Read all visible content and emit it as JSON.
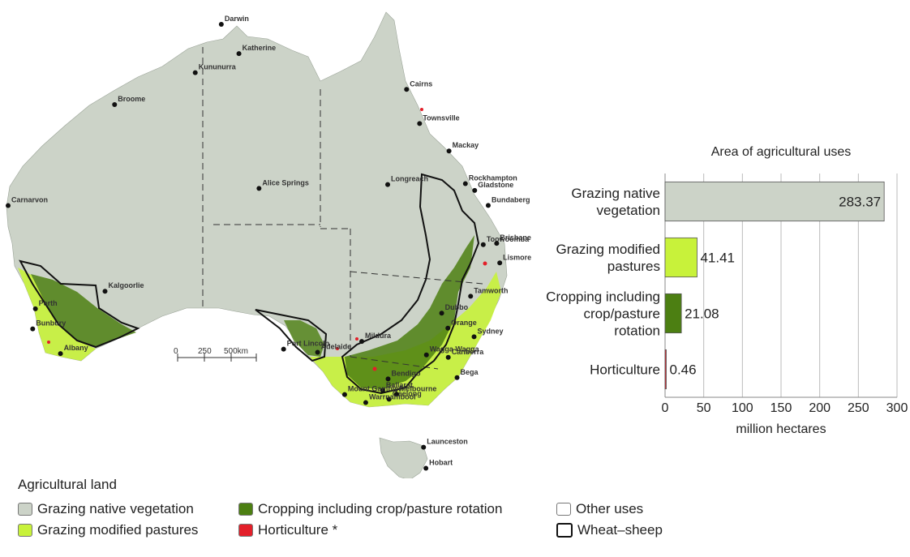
{
  "map": {
    "cities": [
      {
        "name": "Darwin",
        "lon": 130.84,
        "lat": -12.46
      },
      {
        "name": "Katherine",
        "lon": 132.26,
        "lat": -14.47
      },
      {
        "name": "Kununurra",
        "lon": 128.74,
        "lat": -15.77
      },
      {
        "name": "Broome",
        "lon": 122.24,
        "lat": -17.96
      },
      {
        "name": "Cairns",
        "lon": 145.77,
        "lat": -16.92
      },
      {
        "name": "Townsville",
        "lon": 146.82,
        "lat": -19.26
      },
      {
        "name": "Mackay",
        "lon": 149.19,
        "lat": -21.14
      },
      {
        "name": "Alice Springs",
        "lon": 133.88,
        "lat": -23.7
      },
      {
        "name": "Longreach",
        "lon": 144.25,
        "lat": -23.44
      },
      {
        "name": "Gladstone",
        "lon": 151.26,
        "lat": -23.84
      },
      {
        "name": "Rockhampton",
        "lon": 150.51,
        "lat": -23.38
      },
      {
        "name": "Bundaberg",
        "lon": 152.35,
        "lat": -24.87
      },
      {
        "name": "Carnarvon",
        "lon": 113.66,
        "lat": -24.88
      },
      {
        "name": "Toowoomba",
        "lon": 151.95,
        "lat": -27.56
      },
      {
        "name": "Brisbane",
        "lon": 153.03,
        "lat": -27.47
      },
      {
        "name": "Lismore",
        "lon": 153.28,
        "lat": -28.81
      },
      {
        "name": "Kalgoorlie",
        "lon": 121.47,
        "lat": -30.75
      },
      {
        "name": "Tamworth",
        "lon": 150.93,
        "lat": -31.09
      },
      {
        "name": "Perth",
        "lon": 115.86,
        "lat": -31.95
      },
      {
        "name": "Dubbo",
        "lon": 148.6,
        "lat": -32.25
      },
      {
        "name": "Bunbury",
        "lon": 115.64,
        "lat": -33.33
      },
      {
        "name": "Orange",
        "lon": 149.1,
        "lat": -33.28
      },
      {
        "name": "Port Lincoln",
        "lon": 135.86,
        "lat": -34.72
      },
      {
        "name": "Mildura",
        "lon": 142.16,
        "lat": -34.19
      },
      {
        "name": "Sydney",
        "lon": 151.21,
        "lat": -33.87
      },
      {
        "name": "Adelaide",
        "lon": 138.6,
        "lat": -34.93
      },
      {
        "name": "Albany",
        "lon": 117.88,
        "lat": -35.02
      },
      {
        "name": "Wagga Wagga",
        "lon": 147.37,
        "lat": -35.11
      },
      {
        "name": "Canberra",
        "lon": 149.13,
        "lat": -35.28
      },
      {
        "name": "Bendigo",
        "lon": 144.28,
        "lat": -36.76
      },
      {
        "name": "Bega",
        "lon": 149.84,
        "lat": -36.67
      },
      {
        "name": "Ballarat",
        "lon": 143.85,
        "lat": -37.56
      },
      {
        "name": "Mount Gambier",
        "lon": 140.78,
        "lat": -37.83
      },
      {
        "name": "Geelong",
        "lon": 144.36,
        "lat": -38.15
      },
      {
        "name": "Melbourne",
        "lon": 144.96,
        "lat": -37.81
      },
      {
        "name": "Warrnambool",
        "lon": 142.48,
        "lat": -38.38
      },
      {
        "name": "Launceston",
        "lon": 147.14,
        "lat": -41.44
      },
      {
        "name": "Hobart",
        "lon": 147.33,
        "lat": -42.88
      }
    ],
    "scale_bar": {
      "labels": [
        "0",
        "250",
        "500km"
      ]
    }
  },
  "legend": {
    "title": "Agricultural land",
    "items": [
      {
        "label": "Grazing native vegetation",
        "color": "#ccd3c8"
      },
      {
        "label": "Grazing modified pastures",
        "color": "#c8f23a"
      },
      {
        "label": "Cropping including crop/pasture rotation",
        "color": "#4c7f12"
      },
      {
        "label": "Horticulture *",
        "color": "#e3202a"
      },
      {
        "label": "Other uses",
        "color": "#ffffff"
      },
      {
        "label": "Wheat–sheep",
        "color": "#ffffff"
      }
    ]
  },
  "chart_data": {
    "type": "bar",
    "orientation": "horizontal",
    "title": "Area of agricultural uses",
    "categories": [
      [
        "Grazing native",
        "vegetation"
      ],
      [
        "Grazing modified",
        "pastures"
      ],
      [
        "Cropping including",
        "crop/pasture",
        "rotation"
      ],
      [
        "Horticulture"
      ]
    ],
    "values": [
      283.37,
      41.41,
      21.08,
      0.46
    ],
    "value_labels": [
      "283.37",
      "41.41",
      "21.08",
      "0.46"
    ],
    "colors": [
      "#ccd3c8",
      "#c8f23a",
      "#4c7f12",
      "#e3202a"
    ],
    "xlabel": "million hectares",
    "xlim": [
      0,
      300
    ],
    "xticks": [
      0,
      50,
      100,
      150,
      200,
      250,
      300
    ],
    "grid": true
  }
}
